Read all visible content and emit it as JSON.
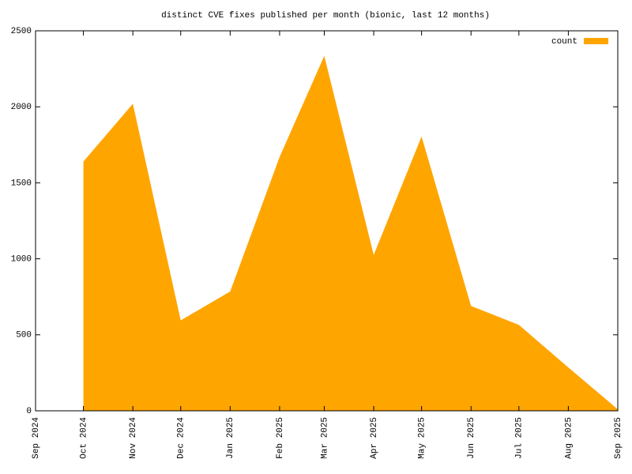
{
  "chart_data": {
    "type": "area",
    "title": "distinct CVE fixes published per month (bionic, last 12 months)",
    "x": [
      "2024-10",
      "2024-11",
      "2024-12",
      "2025-01",
      "2025-02",
      "2025-03",
      "2025-04",
      "2025-05",
      "2025-06",
      "2025-07",
      "2025-08",
      "2025-09"
    ],
    "series": [
      {
        "name": "count",
        "color": "#ffa500",
        "values": [
          1640,
          2020,
          595,
          785,
          1670,
          2335,
          1025,
          1805,
          690,
          565,
          285,
          10
        ]
      }
    ],
    "xlim": [
      "2024-09",
      "2025-09"
    ],
    "xticks": [
      {
        "value": "2024-09",
        "label": "Sep 2024"
      },
      {
        "value": "2024-10",
        "label": "Oct 2024"
      },
      {
        "value": "2024-11",
        "label": "Nov 2024"
      },
      {
        "value": "2024-12",
        "label": "Dec 2024"
      },
      {
        "value": "2025-01",
        "label": "Jan 2025"
      },
      {
        "value": "2025-02",
        "label": "Feb 2025"
      },
      {
        "value": "2025-03",
        "label": "Mar 2025"
      },
      {
        "value": "2025-04",
        "label": "Apr 2025"
      },
      {
        "value": "2025-05",
        "label": "May 2025"
      },
      {
        "value": "2025-06",
        "label": "Jun 2025"
      },
      {
        "value": "2025-07",
        "label": "Jul 2025"
      },
      {
        "value": "2025-08",
        "label": "Aug 2025"
      },
      {
        "value": "2025-09",
        "label": "Sep 2025"
      }
    ],
    "ylim": [
      0,
      2500
    ],
    "yticks": [
      0,
      500,
      1000,
      1500,
      2000,
      2500
    ],
    "legend": "top-right"
  }
}
